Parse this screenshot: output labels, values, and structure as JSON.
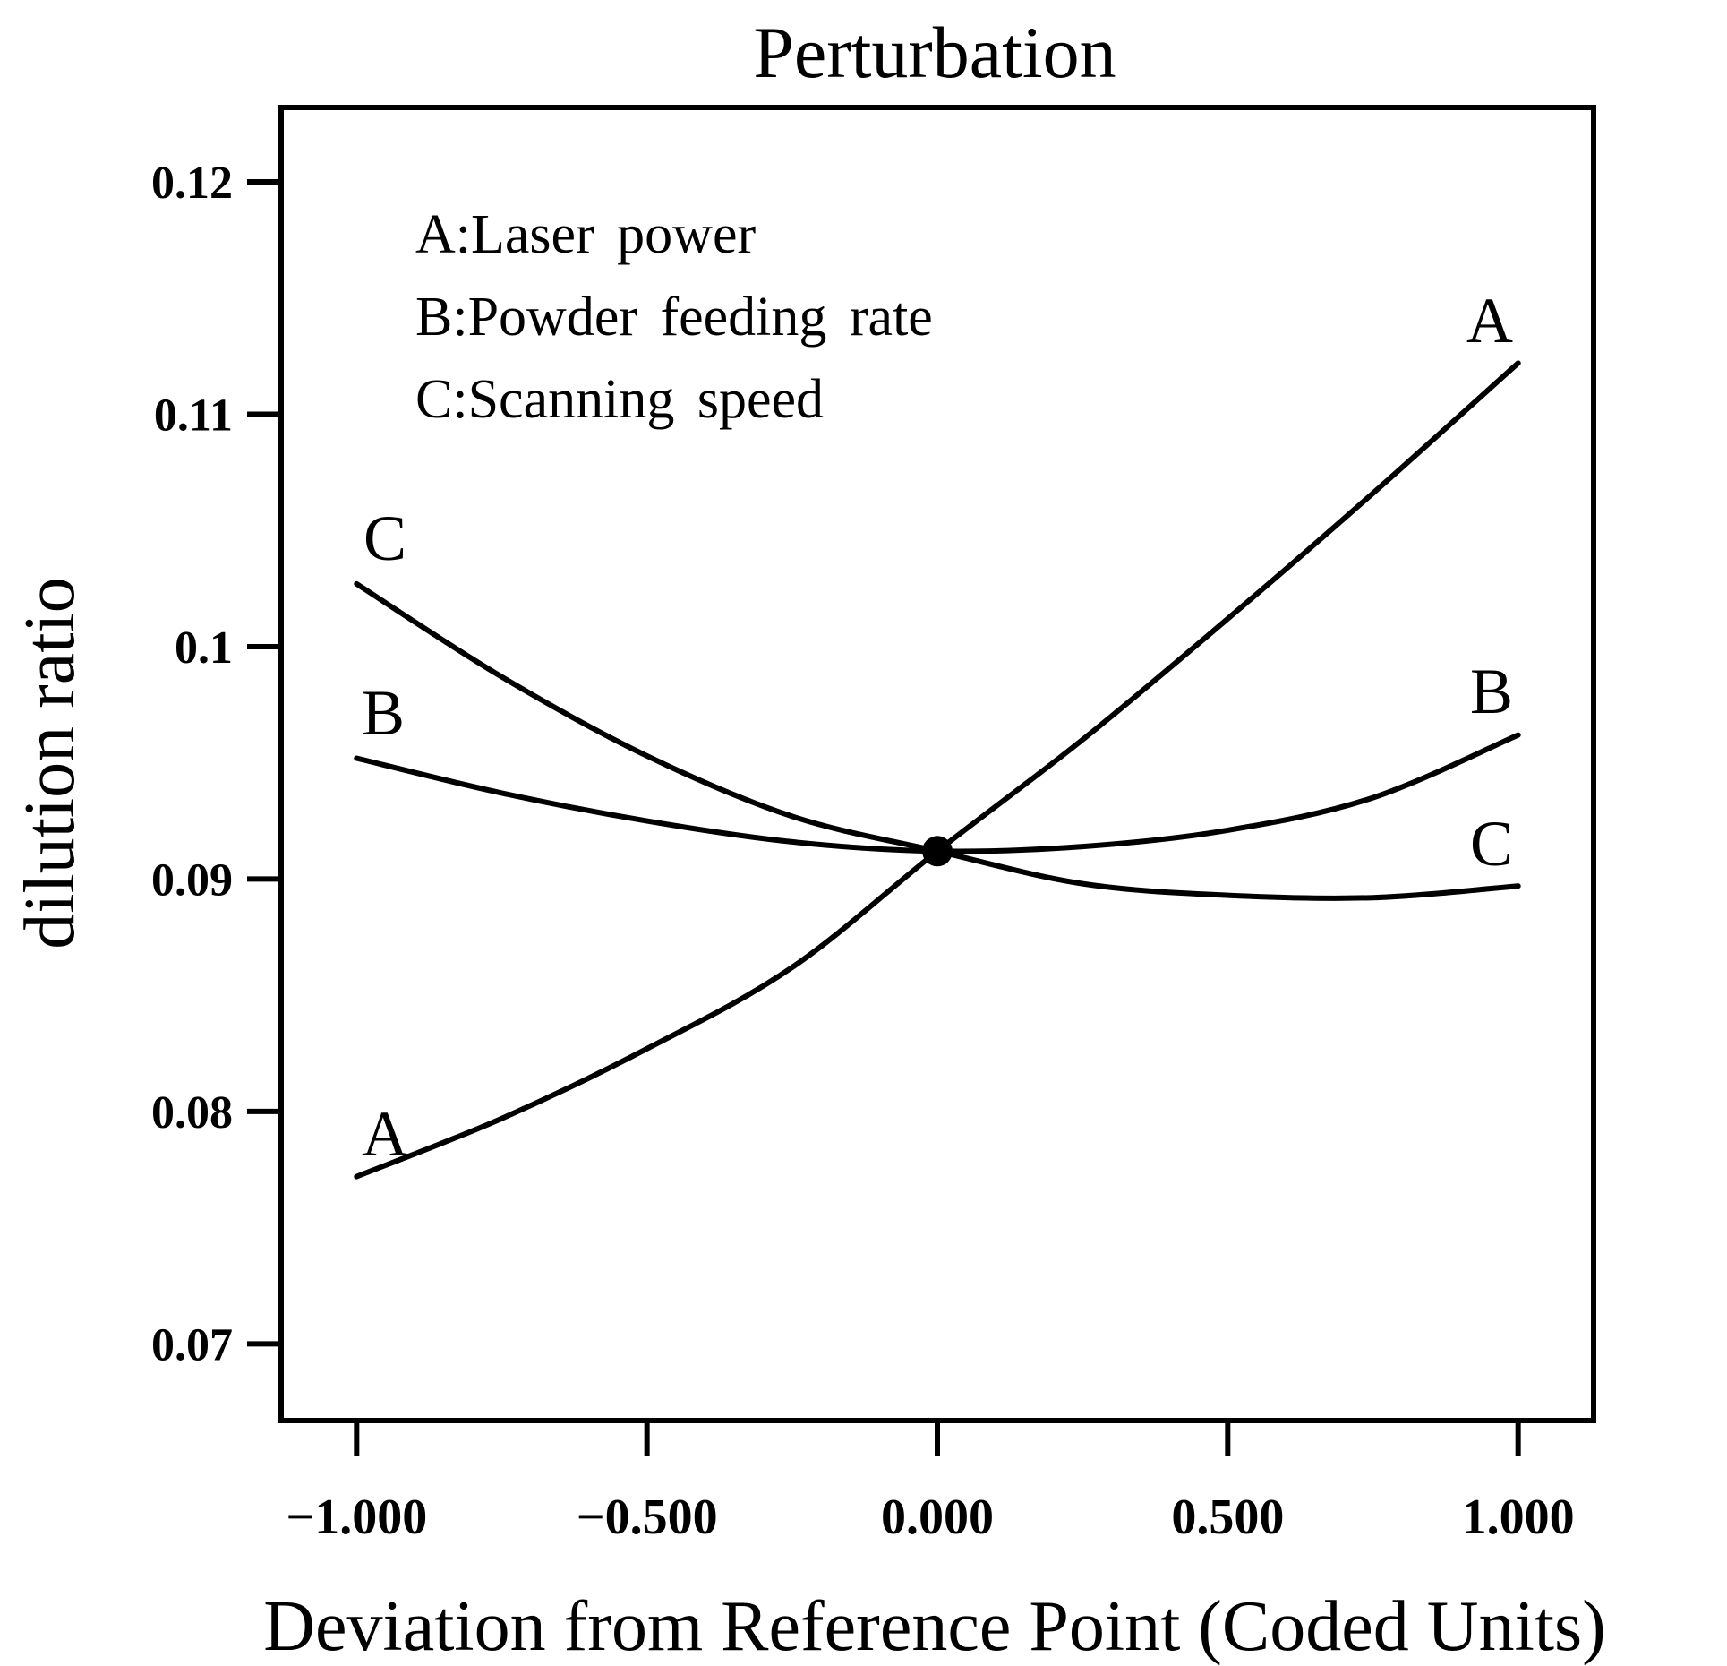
{
  "chart_data": {
    "type": "line",
    "title": "Perturbation",
    "xlabel": "Deviation from Reference Point (Coded Units)",
    "ylabel": "dilution ratio",
    "xlim": [
      -1.13,
      1.13
    ],
    "ylim": [
      0.0667,
      0.1232
    ],
    "x_ticks": [
      -1.0,
      -0.5,
      0.0,
      0.5,
      1.0
    ],
    "x_tick_labels": [
      "−1.000",
      "−0.500",
      "0.000",
      "0.500",
      "1.000"
    ],
    "y_ticks": [
      0.07,
      0.08,
      0.09,
      0.1,
      0.11,
      0.12
    ],
    "y_tick_labels": [
      "0.07",
      "0.08",
      "0.09",
      "0.1",
      "0.11",
      "0.12"
    ],
    "legend": [
      "A:Laser power",
      "B:Powder feeding rate",
      "C:Scanning speed"
    ],
    "x": [
      -1.0,
      -0.75,
      -0.5,
      -0.25,
      0.0,
      0.25,
      0.5,
      0.75,
      1.0
    ],
    "series": [
      {
        "name": "A",
        "values": [
          0.0772,
          0.0797,
          0.0827,
          0.0862,
          0.0912,
          0.096,
          0.1012,
          0.1066,
          0.1122
        ]
      },
      {
        "name": "B",
        "values": [
          0.0952,
          0.0937,
          0.0925,
          0.0916,
          0.0912,
          0.0914,
          0.0921,
          0.0935,
          0.0962
        ]
      },
      {
        "name": "C",
        "values": [
          0.1027,
          0.0987,
          0.0953,
          0.0927,
          0.0912,
          0.0898,
          0.0893,
          0.0892,
          0.0897
        ]
      }
    ],
    "reference_point": {
      "x": 0.0,
      "y": 0.0912
    },
    "curve_end_labels": {
      "left": [
        "C",
        "B",
        "A"
      ],
      "right": [
        "A",
        "B",
        "C"
      ]
    },
    "grid": false,
    "line_color": "#000000"
  }
}
